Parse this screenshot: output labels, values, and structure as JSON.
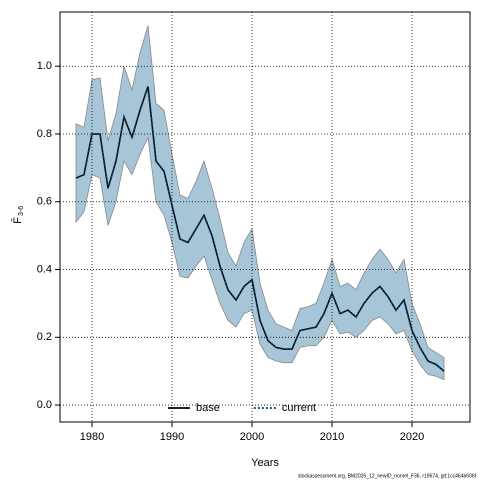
{
  "chart_data": {
    "type": "line",
    "x_label": "Years",
    "y_label": "F̄",
    "y_label_sub": "3-6",
    "footnote": "stockassessment.org, BM2026_12_newID_nonrel_F36, r19674, git:1cc464b606f",
    "x": [
      1978,
      1979,
      1980,
      1981,
      1982,
      1983,
      1984,
      1985,
      1986,
      1987,
      1988,
      1989,
      1990,
      1991,
      1992,
      1993,
      1994,
      1995,
      1996,
      1997,
      1998,
      1999,
      2000,
      2001,
      2002,
      2003,
      2004,
      2005,
      2006,
      2007,
      2008,
      2009,
      2010,
      2011,
      2012,
      2013,
      2014,
      2015,
      2016,
      2017,
      2018,
      2019,
      2020,
      2021,
      2022,
      2023,
      2024
    ],
    "series": [
      {
        "name": "base",
        "color": "#000000",
        "dash": false,
        "values": [
          0.67,
          0.68,
          0.8,
          0.8,
          0.64,
          0.72,
          0.85,
          0.79,
          0.87,
          0.94,
          0.72,
          0.69,
          0.59,
          0.49,
          0.48,
          0.52,
          0.56,
          0.5,
          0.41,
          0.34,
          0.31,
          0.35,
          0.37,
          0.25,
          0.19,
          0.17,
          0.165,
          0.165,
          0.22,
          0.225,
          0.23,
          0.27,
          0.33,
          0.27,
          0.28,
          0.26,
          0.3,
          0.33,
          0.35,
          0.32,
          0.28,
          0.31,
          0.22,
          0.17,
          0.13,
          0.12,
          0.1
        ]
      },
      {
        "name": "current",
        "color": "#0b3c5d",
        "dash": true,
        "values": [
          0.67,
          0.68,
          0.8,
          0.8,
          0.64,
          0.72,
          0.85,
          0.79,
          0.87,
          0.94,
          0.72,
          0.69,
          0.59,
          0.49,
          0.48,
          0.52,
          0.56,
          0.5,
          0.41,
          0.34,
          0.31,
          0.35,
          0.37,
          0.25,
          0.19,
          0.17,
          0.165,
          0.165,
          0.22,
          0.225,
          0.23,
          0.27,
          0.33,
          0.27,
          0.28,
          0.26,
          0.3,
          0.33,
          0.35,
          0.32,
          0.28,
          0.31,
          0.22,
          0.17,
          0.13,
          0.12,
          0.1
        ]
      }
    ],
    "band_color": "#a6c6d8",
    "band_upper": [
      0.83,
      0.82,
      0.96,
      0.965,
      0.78,
      0.86,
      1.0,
      0.93,
      1.04,
      1.12,
      0.89,
      0.87,
      0.74,
      0.62,
      0.61,
      0.66,
      0.72,
      0.64,
      0.55,
      0.45,
      0.41,
      0.48,
      0.52,
      0.36,
      0.28,
      0.24,
      0.23,
      0.22,
      0.285,
      0.29,
      0.3,
      0.36,
      0.43,
      0.35,
      0.36,
      0.34,
      0.39,
      0.43,
      0.46,
      0.43,
      0.39,
      0.43,
      0.3,
      0.24,
      0.17,
      0.155,
      0.14
    ],
    "band_lower": [
      0.54,
      0.57,
      0.68,
      0.67,
      0.53,
      0.6,
      0.72,
      0.68,
      0.74,
      0.79,
      0.6,
      0.56,
      0.48,
      0.38,
      0.375,
      0.41,
      0.44,
      0.37,
      0.3,
      0.25,
      0.23,
      0.27,
      0.28,
      0.18,
      0.14,
      0.13,
      0.125,
      0.125,
      0.17,
      0.175,
      0.175,
      0.2,
      0.25,
      0.21,
      0.215,
      0.2,
      0.22,
      0.25,
      0.26,
      0.24,
      0.21,
      0.22,
      0.16,
      0.12,
      0.09,
      0.085,
      0.075
    ],
    "xlim": [
      1976,
      2027.25
    ],
    "ylim": [
      -0.05,
      1.16
    ],
    "xticks": [
      1980,
      1990,
      2000,
      2010,
      2020
    ],
    "yticks": [
      {
        "value": 0,
        "label": "0.0"
      },
      0.2,
      0.4,
      0.6,
      0.8,
      {
        "value": 1,
        "label": "1.0"
      }
    ],
    "grid": true,
    "legend": "bottom"
  }
}
